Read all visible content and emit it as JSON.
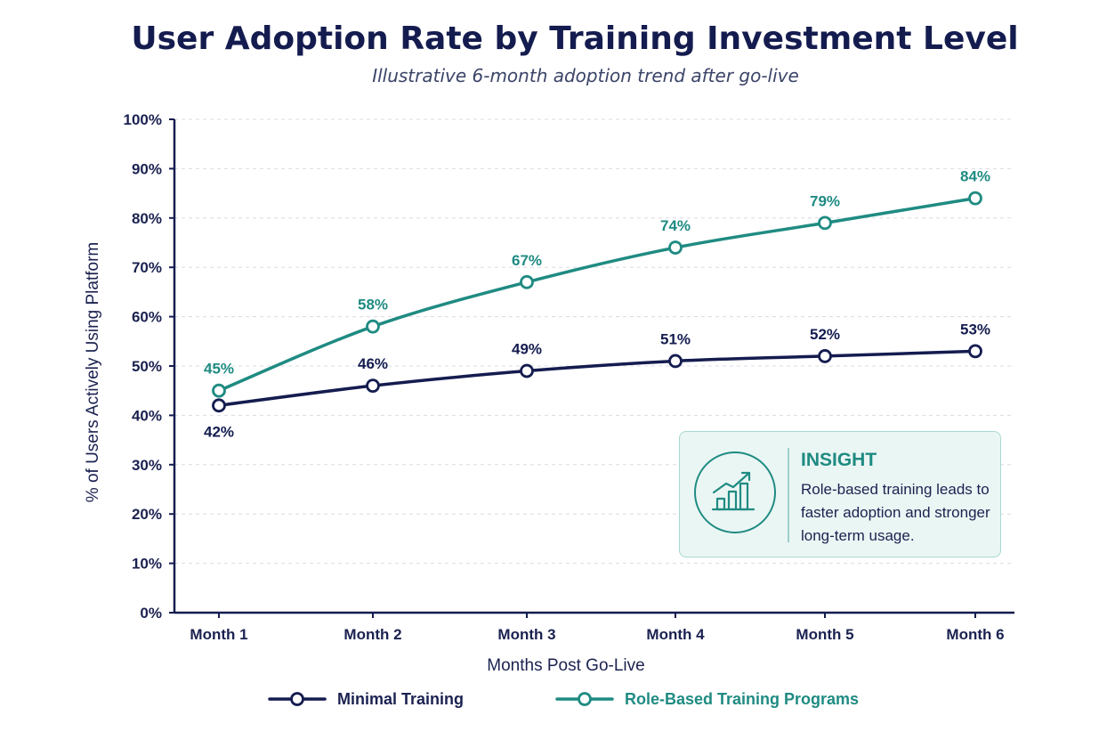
{
  "chart_data": {
    "type": "line",
    "title": "User Adoption Rate by Training Investment Level",
    "subtitle": "Illustrative 6-month adoption trend after go-live",
    "xlabel": "Months Post Go-Live",
    "ylabel": "% of Users Actively Using Platform",
    "categories": [
      "Month 1",
      "Month 2",
      "Month 3",
      "Month 4",
      "Month 5",
      "Month 6"
    ],
    "ylim": [
      0,
      100
    ],
    "yticks": [
      "0%",
      "10%",
      "20%",
      "30%",
      "40%",
      "50%",
      "60%",
      "70%",
      "80%",
      "90%",
      "100%"
    ],
    "grid": true,
    "legend_position": "bottom",
    "series": [
      {
        "name": "Minimal Training",
        "values": [
          42,
          46,
          49,
          51,
          52,
          53
        ],
        "labels": [
          "42%",
          "46%",
          "49%",
          "51%",
          "52%",
          "53%"
        ],
        "color": "#141c4f"
      },
      {
        "name": "Role-Based Training Programs",
        "values": [
          45,
          58,
          67,
          74,
          79,
          84
        ],
        "labels": [
          "45%",
          "58%",
          "67%",
          "74%",
          "79%",
          "84%"
        ],
        "color": "#1f8b82"
      }
    ],
    "annotation": {
      "heading": "INSIGHT",
      "text": "Role-based training leads to faster adoption and stronger long-term usage.",
      "icon": "growth-chart-icon"
    }
  }
}
